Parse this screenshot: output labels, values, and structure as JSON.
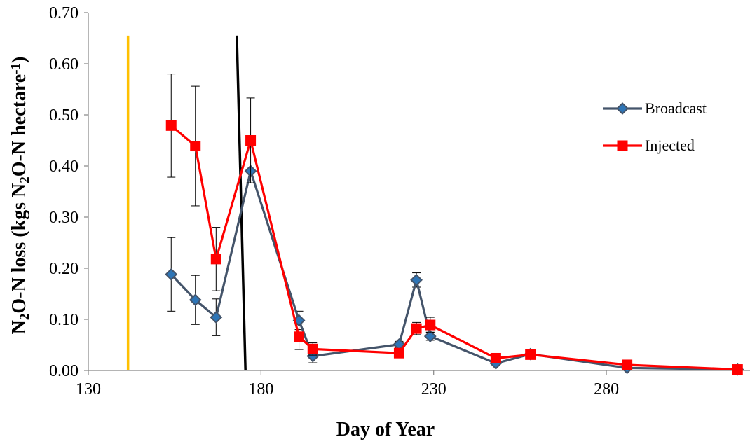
{
  "chart_data": {
    "type": "line",
    "xlabel": "Day of Year",
    "ylabel": {
      "parts": [
        "N",
        "2",
        "O-N loss (kgs N",
        "2",
        "O-N hectare",
        "-1",
        ")"
      ]
    },
    "x_ticks": [
      130,
      180,
      230,
      280
    ],
    "y_ticks": [
      "0.00",
      "0.10",
      "0.20",
      "0.30",
      "0.40",
      "0.50",
      "0.60",
      "0.70"
    ],
    "xlim": [
      130,
      322
    ],
    "ylim": [
      0,
      0.7
    ],
    "grid": false,
    "legend_position": "right",
    "series": [
      {
        "name": "Broadcast",
        "color": "#44546A",
        "marker": "diamond",
        "x": [
          154,
          161,
          167,
          177,
          191,
          195,
          220,
          225,
          229,
          248,
          258,
          286,
          318
        ],
        "y": [
          0.188,
          0.138,
          0.104,
          0.39,
          0.098,
          0.028,
          0.051,
          0.177,
          0.067,
          0.014,
          0.032,
          0.005,
          0.002
        ],
        "err": [
          0.072,
          0.048,
          0.036,
          0.002,
          0.018,
          0.013,
          0.006,
          0.014,
          0.008,
          0.005,
          0.004,
          0.002,
          0.001
        ]
      },
      {
        "name": "Injected",
        "color": "#FF0000",
        "marker": "square",
        "x": [
          154,
          161,
          167,
          177,
          191,
          195,
          220,
          225,
          229,
          248,
          258,
          286,
          318
        ],
        "y": [
          0.479,
          0.439,
          0.218,
          0.45,
          0.066,
          0.042,
          0.034,
          0.082,
          0.089,
          0.024,
          0.031,
          0.011,
          0.002
        ],
        "err": [
          0.101,
          0.117,
          0.062,
          0.083,
          0.025,
          0.012,
          0.004,
          0.012,
          0.015,
          0.005,
          0.003,
          0.002,
          0.001
        ]
      }
    ],
    "reference_lines": [
      {
        "color": "#FFC000",
        "x1": 141.5,
        "y1": 0.655,
        "x2": 141.5,
        "y2": 0.0
      },
      {
        "color": "#000000",
        "x1": 173,
        "y1": 0.655,
        "x2": 175.5,
        "y2": 0.0
      }
    ]
  }
}
